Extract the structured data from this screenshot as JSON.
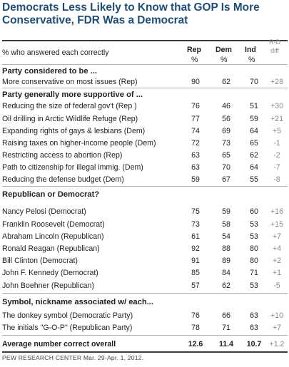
{
  "title": "Democrats Less Likely to Know that GOP Is More Conservative, FDR Was a Democrat",
  "header": {
    "note": "% who answered each correctly",
    "rep": "Rep",
    "dem": "Dem",
    "ind": "Ind",
    "pct": "%",
    "diff_line1": "R-D",
    "diff_line2": "diff"
  },
  "colors": {
    "title": "#1f4e79",
    "diff": "#8a8a8a"
  },
  "chart_data": {
    "type": "table",
    "title": "Democrats Less Likely to Know that GOP Is More Conservative, FDR Was a Democrat",
    "columns": [
      "Rep",
      "Dem",
      "Ind",
      "R-D diff"
    ],
    "units": "%",
    "sections": [
      {
        "heading": "Party considered to be ...",
        "rows": [
          {
            "label": "More conservative on most issues (Rep)",
            "rep": "90",
            "dem": "62",
            "ind": "70",
            "diff": "+28"
          }
        ]
      },
      {
        "heading": "Party generally more supportive of ...",
        "rows": [
          {
            "label": "Reducing the size of federal gov't (Rep )",
            "rep": "76",
            "dem": "46",
            "ind": "51",
            "diff": "+30"
          },
          {
            "label": "Oil drilling in Arctic Wildlife Refuge (Rep)",
            "rep": "77",
            "dem": "56",
            "ind": "59",
            "diff": "+21"
          },
          {
            "label": "Expanding rights of gays & lesbians (Dem)",
            "rep": "74",
            "dem": "69",
            "ind": "64",
            "diff": "+5"
          },
          {
            "label": "Raising taxes on higher-income people (Dem)",
            "rep": "72",
            "dem": "73",
            "ind": "65",
            "diff": "-1"
          },
          {
            "label": "Restricting access to abortion (Rep)",
            "rep": "63",
            "dem": "65",
            "ind": "62",
            "diff": "-2"
          },
          {
            "label": "Path to citizenship for illegal immig. (Dem)",
            "rep": "63",
            "dem": "70",
            "ind": "64",
            "diff": "-7"
          },
          {
            "label": "Reducing the defense budget (Dem)",
            "rep": "59",
            "dem": "67",
            "ind": "55",
            "diff": "-8"
          }
        ]
      },
      {
        "heading": "Republican or Democrat?",
        "rows": [
          {
            "label": "Nancy Pelosi (Democrat)",
            "rep": "75",
            "dem": "59",
            "ind": "60",
            "diff": "+16"
          },
          {
            "label": "Franklin Roosevelt (Democrat)",
            "rep": "73",
            "dem": "58",
            "ind": "53",
            "diff": "+15"
          },
          {
            "label": "Abraham Lincoln (Republican)",
            "rep": "61",
            "dem": "54",
            "ind": "53",
            "diff": "+7"
          },
          {
            "label": "Ronald Reagan (Republican)",
            "rep": "92",
            "dem": "88",
            "ind": "80",
            "diff": "+4"
          },
          {
            "label": "Bill Clinton (Democrat)",
            "rep": "91",
            "dem": "89",
            "ind": "80",
            "diff": "+2"
          },
          {
            "label": "John F. Kennedy (Democrat)",
            "rep": "85",
            "dem": "84",
            "ind": "71",
            "diff": "+1"
          },
          {
            "label": "John Boehner (Republican)",
            "rep": "57",
            "dem": "62",
            "ind": "53",
            "diff": "-5"
          }
        ]
      },
      {
        "heading": "Symbol, nickname associated w/ each...",
        "rows": [
          {
            "label": "The donkey symbol (Democratic Party)",
            "rep": "76",
            "dem": "66",
            "ind": "63",
            "diff": "+10"
          },
          {
            "label": "The initials \"G-O-P\" (Republican Party)",
            "rep": "78",
            "dem": "71",
            "ind": "63",
            "diff": "+7"
          }
        ]
      }
    ],
    "average": {
      "label": "Average number correct overall",
      "rep": "12.6",
      "dem": "11.4",
      "ind": "10.7",
      "diff": "+1.2"
    }
  },
  "footer": "PEW RESEARCH CENTER Mar. 29-Apr. 1, 2012."
}
